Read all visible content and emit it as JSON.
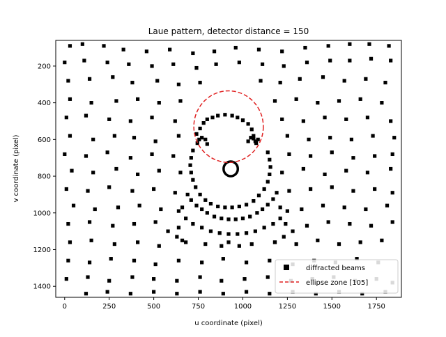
{
  "chart_data": {
    "type": "scatter",
    "title": "Laue pattern, detector distance = 150",
    "xlabel": "u coordinate (pixel)",
    "ylabel": "v coordinate (pixel)",
    "xlim": [
      -50,
      1890
    ],
    "ylim": [
      1460,
      60
    ],
    "y_inverted": true,
    "x_ticks": [
      0,
      250,
      500,
      750,
      1000,
      1250,
      1500,
      1750
    ],
    "y_ticks": [
      200,
      400,
      600,
      800,
      1000,
      1200,
      1400
    ],
    "legend_position": "lower-right",
    "pattern_center": [
      932,
      760
    ],
    "series": [
      {
        "name": "diffracted beams",
        "marker": "square",
        "color": "#000000",
        "points": [
          [
            30,
            90
          ],
          [
            100,
            80
          ],
          [
            220,
            90
          ],
          [
            330,
            110
          ],
          [
            460,
            120
          ],
          [
            590,
            110
          ],
          [
            720,
            130
          ],
          [
            840,
            120
          ],
          [
            960,
            100
          ],
          [
            1090,
            110
          ],
          [
            1220,
            120
          ],
          [
            1350,
            100
          ],
          [
            1480,
            90
          ],
          [
            1600,
            80
          ],
          [
            1710,
            80
          ],
          [
            1820,
            90
          ],
          [
            0,
            180
          ],
          [
            110,
            170
          ],
          [
            240,
            180
          ],
          [
            360,
            190
          ],
          [
            490,
            200
          ],
          [
            610,
            190
          ],
          [
            740,
            210
          ],
          [
            850,
            190
          ],
          [
            980,
            180
          ],
          [
            1110,
            190
          ],
          [
            1230,
            200
          ],
          [
            1360,
            180
          ],
          [
            1490,
            170
          ],
          [
            1600,
            170
          ],
          [
            1720,
            160
          ],
          [
            1830,
            170
          ],
          [
            20,
            280
          ],
          [
            140,
            270
          ],
          [
            270,
            260
          ],
          [
            380,
            290
          ],
          [
            520,
            280
          ],
          [
            640,
            300
          ],
          [
            760,
            290
          ],
          [
            1100,
            280
          ],
          [
            1210,
            290
          ],
          [
            1320,
            270
          ],
          [
            1450,
            260
          ],
          [
            1570,
            280
          ],
          [
            1690,
            270
          ],
          [
            1800,
            290
          ],
          [
            30,
            380
          ],
          [
            150,
            400
          ],
          [
            290,
            390
          ],
          [
            410,
            380
          ],
          [
            530,
            400
          ],
          [
            650,
            390
          ],
          [
            1180,
            390
          ],
          [
            1300,
            380
          ],
          [
            1420,
            400
          ],
          [
            1540,
            390
          ],
          [
            1660,
            380
          ],
          [
            1780,
            400
          ],
          [
            10,
            480
          ],
          [
            120,
            470
          ],
          [
            250,
            490
          ],
          [
            370,
            500
          ],
          [
            490,
            480
          ],
          [
            620,
            500
          ],
          [
            1220,
            490
          ],
          [
            1340,
            500
          ],
          [
            1460,
            480
          ],
          [
            1580,
            490
          ],
          [
            1700,
            480
          ],
          [
            1830,
            500
          ],
          [
            30,
            580
          ],
          [
            160,
            600
          ],
          [
            280,
            580
          ],
          [
            390,
            590
          ],
          [
            510,
            610
          ],
          [
            640,
            580
          ],
          [
            1250,
            580
          ],
          [
            1370,
            600
          ],
          [
            1490,
            590
          ],
          [
            1610,
            600
          ],
          [
            1730,
            580
          ],
          [
            1850,
            590
          ],
          [
            0,
            680
          ],
          [
            120,
            690
          ],
          [
            240,
            670
          ],
          [
            370,
            700
          ],
          [
            490,
            680
          ],
          [
            610,
            690
          ],
          [
            1260,
            680
          ],
          [
            1380,
            690
          ],
          [
            1500,
            670
          ],
          [
            1620,
            700
          ],
          [
            1740,
            690
          ],
          [
            1840,
            680
          ],
          [
            40,
            770
          ],
          [
            160,
            780
          ],
          [
            290,
            760
          ],
          [
            410,
            790
          ],
          [
            530,
            770
          ],
          [
            650,
            780
          ],
          [
            1220,
            780
          ],
          [
            1340,
            760
          ],
          [
            1460,
            790
          ],
          [
            1580,
            770
          ],
          [
            1700,
            780
          ],
          [
            1830,
            760
          ],
          [
            10,
            870
          ],
          [
            130,
            880
          ],
          [
            250,
            860
          ],
          [
            380,
            880
          ],
          [
            500,
            870
          ],
          [
            620,
            890
          ],
          [
            1260,
            880
          ],
          [
            1380,
            870
          ],
          [
            1500,
            860
          ],
          [
            1620,
            880
          ],
          [
            1740,
            870
          ],
          [
            1840,
            890
          ],
          [
            50,
            960
          ],
          [
            170,
            980
          ],
          [
            300,
            970
          ],
          [
            420,
            960
          ],
          [
            540,
            980
          ],
          [
            660,
            970
          ],
          [
            1210,
            970
          ],
          [
            1330,
            980
          ],
          [
            1450,
            960
          ],
          [
            1570,
            970
          ],
          [
            1690,
            980
          ],
          [
            1810,
            960
          ],
          [
            20,
            1060
          ],
          [
            140,
            1050
          ],
          [
            270,
            1070
          ],
          [
            390,
            1060
          ],
          [
            510,
            1050
          ],
          [
            640,
            1080
          ],
          [
            1240,
            1060
          ],
          [
            1360,
            1070
          ],
          [
            1480,
            1050
          ],
          [
            1600,
            1060
          ],
          [
            1720,
            1070
          ],
          [
            1840,
            1050
          ],
          [
            30,
            1160
          ],
          [
            150,
            1150
          ],
          [
            280,
            1170
          ],
          [
            410,
            1160
          ],
          [
            530,
            1180
          ],
          [
            660,
            1150
          ],
          [
            790,
            1170
          ],
          [
            920,
            1160
          ],
          [
            1050,
            1170
          ],
          [
            1180,
            1160
          ],
          [
            1300,
            1170
          ],
          [
            1420,
            1150
          ],
          [
            1540,
            1170
          ],
          [
            1660,
            1160
          ],
          [
            1780,
            1150
          ],
          [
            20,
            1260
          ],
          [
            140,
            1270
          ],
          [
            260,
            1250
          ],
          [
            390,
            1260
          ],
          [
            510,
            1280
          ],
          [
            640,
            1260
          ],
          [
            770,
            1270
          ],
          [
            890,
            1250
          ],
          [
            1020,
            1270
          ],
          [
            1150,
            1260
          ],
          [
            1280,
            1280
          ],
          [
            1400,
            1260
          ],
          [
            1520,
            1270
          ],
          [
            1640,
            1250
          ],
          [
            1760,
            1270
          ],
          [
            10,
            1360
          ],
          [
            130,
            1350
          ],
          [
            250,
            1370
          ],
          [
            380,
            1350
          ],
          [
            500,
            1360
          ],
          [
            630,
            1370
          ],
          [
            760,
            1350
          ],
          [
            880,
            1370
          ],
          [
            1010,
            1360
          ],
          [
            1140,
            1350
          ],
          [
            1270,
            1370
          ],
          [
            1390,
            1360
          ],
          [
            1510,
            1350
          ],
          [
            1630,
            1370
          ],
          [
            1750,
            1360
          ],
          [
            1840,
            1380
          ],
          [
            120,
            1440
          ],
          [
            240,
            1430
          ],
          [
            370,
            1440
          ],
          [
            500,
            1430
          ],
          [
            630,
            1440
          ],
          [
            760,
            1430
          ],
          [
            890,
            1440
          ],
          [
            1020,
            1430
          ],
          [
            1150,
            1440
          ],
          [
            1280,
            1430
          ],
          [
            1410,
            1440
          ],
          [
            1540,
            1430
          ],
          [
            1670,
            1440
          ],
          [
            1800,
            1430
          ],
          [
            740,
            570
          ],
          [
            760,
            540
          ],
          [
            780,
            510
          ],
          [
            800,
            490
          ],
          [
            830,
            480
          ],
          [
            860,
            470
          ],
          [
            900,
            465
          ],
          [
            940,
            470
          ],
          [
            970,
            480
          ],
          [
            1000,
            495
          ],
          [
            1030,
            515
          ],
          [
            1050,
            545
          ],
          [
            1060,
            580
          ],
          [
            1070,
            610
          ],
          [
            745,
            620
          ],
          [
            755,
            600
          ],
          [
            770,
            590
          ],
          [
            790,
            600
          ],
          [
            800,
            625
          ],
          [
            1030,
            610
          ],
          [
            1045,
            590
          ],
          [
            1060,
            595
          ],
          [
            1075,
            620
          ],
          [
            1085,
            600
          ],
          [
            720,
            660
          ],
          [
            710,
            700
          ],
          [
            705,
            740
          ],
          [
            710,
            780
          ],
          [
            720,
            820
          ],
          [
            735,
            860
          ],
          [
            760,
            900
          ],
          [
            790,
            930
          ],
          [
            820,
            950
          ],
          [
            860,
            965
          ],
          [
            900,
            970
          ],
          [
            940,
            970
          ],
          [
            980,
            965
          ],
          [
            1020,
            955
          ],
          [
            1060,
            935
          ],
          [
            1090,
            905
          ],
          [
            1120,
            870
          ],
          [
            1140,
            830
          ],
          [
            1150,
            790
          ],
          [
            1155,
            750
          ],
          [
            1150,
            710
          ],
          [
            1140,
            670
          ],
          [
            690,
            900
          ],
          [
            710,
            930
          ],
          [
            740,
            960
          ],
          [
            770,
            980
          ],
          [
            800,
            1000
          ],
          [
            840,
            1020
          ],
          [
            880,
            1030
          ],
          [
            920,
            1035
          ],
          [
            960,
            1035
          ],
          [
            1000,
            1030
          ],
          [
            1040,
            1020
          ],
          [
            1080,
            1000
          ],
          [
            1110,
            980
          ],
          [
            1140,
            955
          ],
          [
            1170,
            925
          ],
          [
            1190,
            890
          ],
          [
            640,
            990
          ],
          [
            680,
            1030
          ],
          [
            720,
            1060
          ],
          [
            770,
            1080
          ],
          [
            820,
            1100
          ],
          [
            870,
            1110
          ],
          [
            920,
            1115
          ],
          [
            970,
            1115
          ],
          [
            1020,
            1110
          ],
          [
            1070,
            1100
          ],
          [
            1120,
            1080
          ],
          [
            1170,
            1060
          ],
          [
            1210,
            1030
          ],
          [
            1250,
            990
          ],
          [
            580,
            1100
          ],
          [
            630,
            1130
          ],
          [
            680,
            1160
          ],
          [
            880,
            1180
          ],
          [
            980,
            1180
          ],
          [
            1180,
            1160
          ],
          [
            1230,
            1130
          ],
          [
            1280,
            1100
          ]
        ]
      },
      {
        "name": "ellipse zone [105]",
        "marker": "dashed-line",
        "color": "#e02020",
        "ellipse": {
          "cx": 920,
          "cy": 530,
          "rx": 195,
          "ry": 195
        }
      }
    ],
    "central_spot": {
      "x": 932,
      "y": 760,
      "rx": 40,
      "ry": 40
    }
  }
}
